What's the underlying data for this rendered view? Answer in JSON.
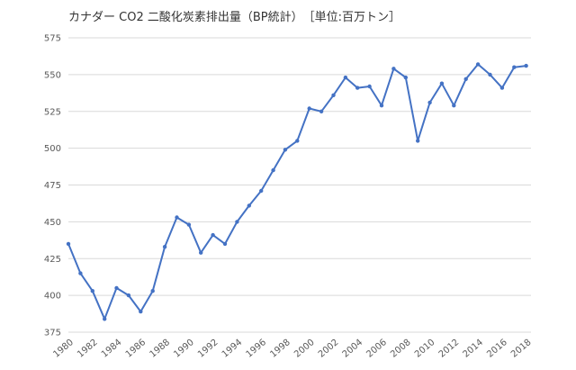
{
  "chart_data": {
    "type": "line",
    "title": "カナダー CO2 二酸化炭素排出量（BP統計）　［単位:百万トン］",
    "xlabel": "",
    "ylabel": "",
    "ylim": [
      375,
      575
    ],
    "yticks": [
      375,
      400,
      425,
      450,
      475,
      500,
      525,
      550,
      575
    ],
    "xticks": [
      1980,
      1982,
      1984,
      1986,
      1988,
      1990,
      1992,
      1994,
      1996,
      1998,
      2000,
      2002,
      2004,
      2006,
      2008,
      2010,
      2012,
      2014,
      2016,
      2018
    ],
    "grid": true,
    "color": "#4472c4",
    "series": [
      {
        "x": [
          1980,
          1981,
          1982,
          1983,
          1984,
          1985,
          1986,
          1987,
          1988,
          1989,
          1990,
          1991,
          1992,
          1993,
          1994,
          1995,
          1996,
          1997,
          1998,
          1999,
          2000,
          2001,
          2002,
          2003,
          2004,
          2005,
          2006,
          2007,
          2008,
          2009,
          2010,
          2011,
          2012,
          2013,
          2014,
          2015,
          2016,
          2017,
          2018
        ],
        "values": [
          435,
          415,
          403,
          384,
          405,
          400,
          389,
          403,
          433,
          453,
          448,
          429,
          441,
          435,
          450,
          461,
          471,
          485,
          499,
          505,
          527,
          525,
          536,
          548,
          541,
          542,
          529,
          554,
          548,
          505,
          531,
          544,
          529,
          547,
          557,
          550,
          541,
          555,
          556
        ]
      }
    ]
  }
}
